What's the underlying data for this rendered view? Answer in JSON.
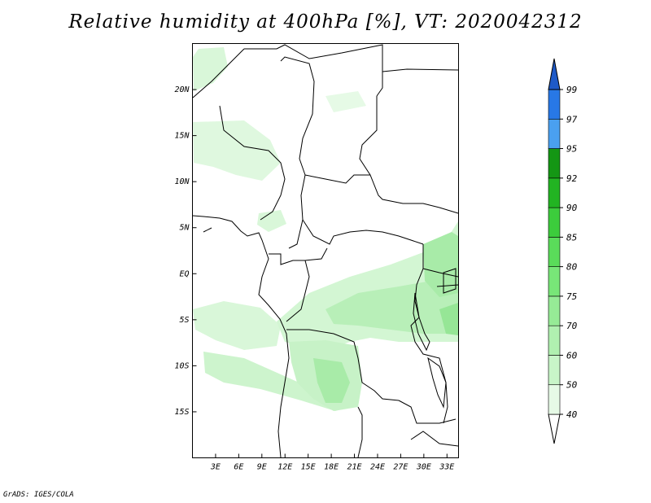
{
  "title": "Relative humidity at 400hPa [%], VT: 2020042312",
  "footer": "GrADS: IGES/COLA",
  "map": {
    "lon_range": [
      0,
      34.5
    ],
    "lat_range": [
      -20,
      25
    ],
    "lat_ticks": [
      {
        "value": 20,
        "label": "20N"
      },
      {
        "value": 15,
        "label": "15N"
      },
      {
        "value": 10,
        "label": "10N"
      },
      {
        "value": 5,
        "label": "5N"
      },
      {
        "value": 0,
        "label": "EQ"
      },
      {
        "value": -5,
        "label": "5S"
      },
      {
        "value": -10,
        "label": "10S"
      },
      {
        "value": -15,
        "label": "15S"
      }
    ],
    "lon_ticks": [
      {
        "value": 3,
        "label": "3E"
      },
      {
        "value": 6,
        "label": "6E"
      },
      {
        "value": 9,
        "label": "9E"
      },
      {
        "value": 12,
        "label": "12E"
      },
      {
        "value": 15,
        "label": "15E"
      },
      {
        "value": 18,
        "label": "18E"
      },
      {
        "value": 21,
        "label": "21E"
      },
      {
        "value": 24,
        "label": "24E"
      },
      {
        "value": 27,
        "label": "27E"
      },
      {
        "value": 30,
        "label": "30E"
      },
      {
        "value": 33,
        "label": "33E"
      }
    ]
  },
  "colorbar": {
    "levels": [
      "40",
      "50",
      "60",
      "70",
      "75",
      "80",
      "85",
      "90",
      "92",
      "95",
      "97",
      "99"
    ],
    "colors": [
      "#ffffff",
      "#e6fae6",
      "#c8f5c8",
      "#b0f0b0",
      "#96eb96",
      "#78e678",
      "#5adc5a",
      "#3ccc3c",
      "#22b422",
      "#149614",
      "#4aa0f0",
      "#2878e6",
      "#1e5ac8"
    ]
  },
  "colors": {
    "light": "#d9f7d9",
    "mid": "#b8efb8",
    "dark": "#8fe08f"
  }
}
